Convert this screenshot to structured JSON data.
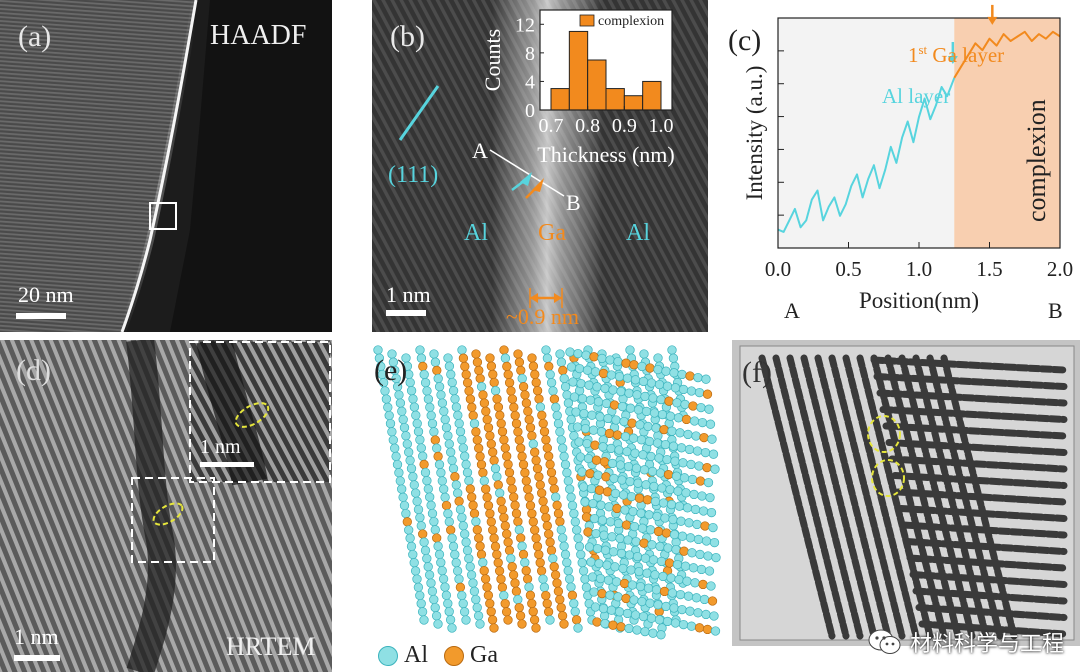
{
  "panel_a": {
    "label": "(a)",
    "mode": "HAADF",
    "scale": "20 nm"
  },
  "panel_b": {
    "label": "(b)",
    "plane": "(111)",
    "point_a": "A",
    "point_b": "B",
    "left": "Al",
    "mid": "Ga",
    "right": "Al",
    "scale": "1 nm",
    "width": "~0.9 nm",
    "colors": {
      "al": "#57d4de",
      "ga": "#f28a1e"
    }
  },
  "panel_c": {
    "label": "(c)",
    "al_layer": "Al layer",
    "ga_layer_num": "1",
    "ga_layer_sup": "st",
    "ga_layer_text": " Ga layer",
    "region": "complexion"
  },
  "panel_d": {
    "label": "(d)",
    "inset_scale": "1 nm",
    "scale": "1 nm",
    "mode": "HRTEM"
  },
  "panel_e": {
    "label": "(e)",
    "legend_al": "Al",
    "legend_ga": "Ga"
  },
  "panel_f": {
    "label": "(f)"
  },
  "watermark": {
    "text": "材料科学与工程"
  },
  "chart_data": [
    {
      "type": "bar",
      "title": "",
      "xlabel": "Thickness (nm)",
      "ylabel": "Counts",
      "legend": [
        "complexion"
      ],
      "categories": [
        "0.70-0.75",
        "0.75-0.80",
        "0.80-0.85",
        "0.85-0.90",
        "0.90-0.95",
        "0.95-1.00"
      ],
      "values": [
        3,
        11,
        7,
        3,
        2,
        4
      ],
      "xlim": [
        0.67,
        1.03
      ],
      "xticks": [
        "0.7",
        "0.8",
        "0.9",
        "1.0"
      ],
      "ylim": [
        0,
        14
      ],
      "yticks": [
        "0",
        "4",
        "8",
        "12"
      ]
    },
    {
      "type": "line",
      "title": "",
      "xlabel": "Position(nm)",
      "ylabel": "Intensity  (a.u.)",
      "x_start_label": "A",
      "x_end_label": "B",
      "xlim": [
        0,
        2.0
      ],
      "xticks": [
        "0.0",
        "0.5",
        "1.0",
        "1.5",
        "2.0"
      ],
      "ylim": [
        0,
        1
      ],
      "shaded_region": [
        1.25,
        2.0
      ],
      "series": [
        {
          "name": "Al",
          "color": "#57d4de",
          "x": [
            0,
            0.04,
            0.08,
            0.12,
            0.16,
            0.2,
            0.24,
            0.28,
            0.32,
            0.36,
            0.4,
            0.44,
            0.48,
            0.52,
            0.56,
            0.6,
            0.64,
            0.68,
            0.72,
            0.76,
            0.8,
            0.84,
            0.88,
            0.92,
            0.96,
            1.0,
            1.04,
            1.08,
            1.12,
            1.16,
            1.2,
            1.25
          ],
          "values": [
            0.08,
            0.07,
            0.12,
            0.17,
            0.09,
            0.12,
            0.21,
            0.25,
            0.12,
            0.18,
            0.22,
            0.14,
            0.19,
            0.27,
            0.32,
            0.22,
            0.3,
            0.36,
            0.26,
            0.34,
            0.44,
            0.37,
            0.48,
            0.55,
            0.46,
            0.57,
            0.65,
            0.56,
            0.62,
            0.7,
            0.66,
            0.74
          ]
        },
        {
          "name": "complexion",
          "color": "#f28a1e",
          "x": [
            1.25,
            1.3,
            1.35,
            1.4,
            1.45,
            1.5,
            1.55,
            1.6,
            1.65,
            1.7,
            1.75,
            1.8,
            1.85,
            1.9,
            1.95,
            2.0
          ],
          "values": [
            0.74,
            0.79,
            0.84,
            0.89,
            0.86,
            0.91,
            0.88,
            0.93,
            0.9,
            0.92,
            0.94,
            0.9,
            0.93,
            0.91,
            0.94,
            0.92
          ]
        }
      ]
    }
  ]
}
